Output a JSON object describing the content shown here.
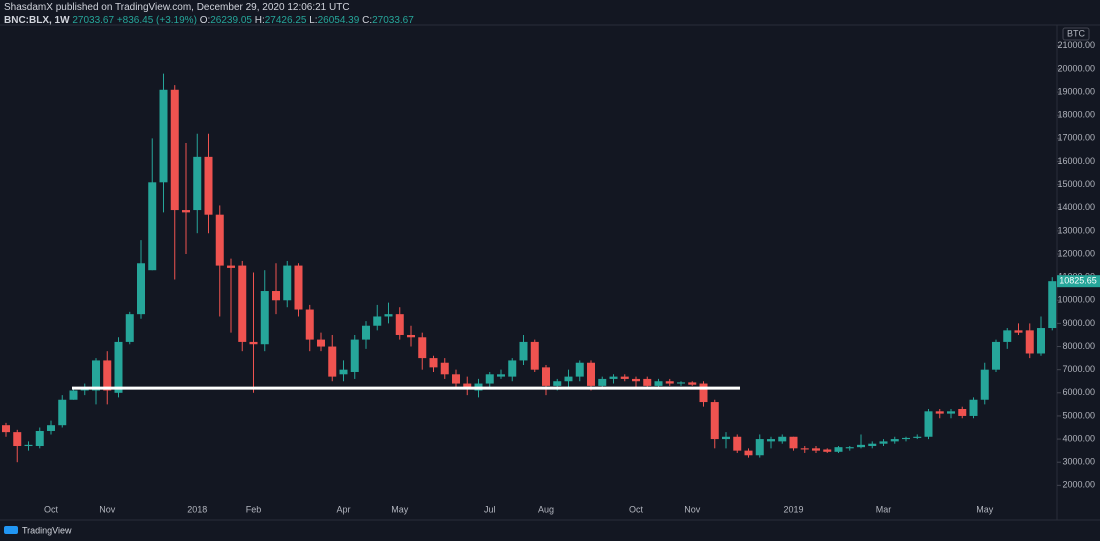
{
  "header": {
    "published": "ShasdamX published on TradingView.com, December 29, 2020 12:06:21 UTC",
    "symbol": "BNC:BLX, 1W",
    "price": "27033.67",
    "change": "+836.45 (+3.19%)",
    "o_label": "O:",
    "o": "26239.05",
    "h_label": "H:",
    "h": "27426.25",
    "l_label": "L:",
    "l": "26054.39",
    "c_label": "C:",
    "c": "27033.67"
  },
  "footer": {
    "brand": "TradingView"
  },
  "chart_data": {
    "type": "candlestick",
    "currency": "BTC",
    "categories": [
      null,
      null,
      null,
      null,
      "Oct",
      null,
      null,
      null,
      null,
      "Nov",
      null,
      null,
      null,
      null,
      null,
      null,
      null,
      "2018",
      null,
      null,
      null,
      null,
      "Feb",
      null,
      null,
      null,
      null,
      null,
      null,
      null,
      "Apr",
      null,
      null,
      null,
      null,
      "May",
      null,
      null,
      null,
      null,
      null,
      null,
      null,
      "Jul",
      null,
      null,
      null,
      null,
      "Aug",
      null,
      null,
      null,
      null,
      null,
      null,
      null,
      "Oct",
      null,
      null,
      null,
      null,
      "Nov",
      null,
      null,
      null,
      null,
      null,
      null,
      null,
      null,
      "2019",
      null,
      null,
      null,
      null,
      null,
      null,
      null,
      "Mar",
      null,
      null,
      null,
      null,
      null,
      null,
      null,
      null,
      "May",
      null,
      null,
      null,
      null,
      null,
      null
    ],
    "open": [
      4600,
      4300,
      3700,
      3700,
      4350,
      4600,
      5700,
      6100,
      6100,
      7400,
      6000,
      8200,
      9400,
      11300,
      15100,
      19100,
      13900,
      13900,
      16200,
      13700,
      11500,
      11500,
      8200,
      8100,
      10400,
      10000,
      11500,
      9600,
      8300,
      8000,
      6800,
      6900,
      8300,
      8900,
      9300,
      9400,
      8500,
      8400,
      7500,
      7300,
      6800,
      6400,
      6100,
      6400,
      6700,
      6700,
      7400,
      8200,
      7100,
      6300,
      6500,
      6700,
      7300,
      6300,
      6600,
      6700,
      6600,
      6600,
      6300,
      6500,
      6400,
      6450,
      6400,
      5600,
      4000,
      4100,
      3500,
      3300,
      3900,
      3900,
      4100,
      3600,
      3600,
      3550,
      3450,
      3600,
      3650,
      3700,
      3800,
      3900,
      4000,
      4050,
      4100,
      5200,
      5100,
      5300,
      5000,
      5700,
      7000,
      8200,
      8700,
      8700,
      7700,
      8800
    ],
    "high": [
      4700,
      4400,
      3900,
      4500,
      4800,
      5900,
      6200,
      6400,
      7500,
      7800,
      8400,
      9500,
      12600,
      17000,
      19800,
      19300,
      16800,
      17200,
      17200,
      14100,
      11800,
      11700,
      11200,
      11300,
      11600,
      11700,
      11600,
      9800,
      8600,
      8500,
      7400,
      8500,
      9100,
      9800,
      9900,
      9700,
      8900,
      8600,
      7600,
      7500,
      7000,
      6700,
      6600,
      6900,
      7000,
      7500,
      8500,
      8300,
      7200,
      6600,
      7000,
      7400,
      7400,
      6700,
      6800,
      6800,
      6700,
      6700,
      6600,
      6600,
      6500,
      6500,
      6500,
      5700,
      4300,
      4200,
      3600,
      4200,
      4100,
      4200,
      4100,
      3700,
      3700,
      3600,
      3700,
      3700,
      4200,
      3900,
      4000,
      4100,
      4100,
      4200,
      5300,
      5300,
      5300,
      5400,
      5800,
      7300,
      8300,
      8800,
      9000,
      9000,
      9300,
      11000
    ],
    "low": [
      4100,
      3000,
      3500,
      3600,
      4200,
      4500,
      5700,
      5900,
      5500,
      5500,
      5800,
      8100,
      9200,
      11300,
      13800,
      10900,
      12000,
      12900,
      12900,
      9300,
      8600,
      7800,
      6000,
      7800,
      9400,
      9700,
      9300,
      7800,
      7800,
      6500,
      6500,
      6600,
      7900,
      8700,
      9000,
      8300,
      8000,
      7000,
      6900,
      6600,
      6200,
      5900,
      5800,
      6200,
      6600,
      6500,
      7200,
      6900,
      5900,
      6100,
      6200,
      6500,
      6100,
      6200,
      6400,
      6500,
      6200,
      6200,
      6200,
      6300,
      6300,
      6300,
      5400,
      3600,
      3600,
      3400,
      3200,
      3200,
      3600,
      3800,
      3500,
      3400,
      3400,
      3400,
      3400,
      3500,
      3600,
      3600,
      3700,
      3800,
      3900,
      4000,
      4000,
      4900,
      4900,
      4900,
      4900,
      5500,
      6900,
      7900,
      8500,
      7500,
      7600,
      8700
    ],
    "close": [
      4300,
      3700,
      3750,
      4350,
      4600,
      5700,
      6100,
      6150,
      7400,
      6100,
      8200,
      9400,
      11600,
      15100,
      19100,
      13900,
      13800,
      16200,
      13700,
      11500,
      11400,
      8200,
      8100,
      10400,
      10000,
      11500,
      9600,
      8300,
      8000,
      6700,
      7000,
      8300,
      8900,
      9300,
      9400,
      8500,
      8400,
      7500,
      7100,
      6800,
      6400,
      6200,
      6400,
      6800,
      6800,
      7400,
      8200,
      7000,
      6300,
      6500,
      6700,
      7300,
      6300,
      6600,
      6700,
      6600,
      6500,
      6300,
      6500,
      6400,
      6450,
      6350,
      5600,
      4000,
      4100,
      3500,
      3300,
      4000,
      4000,
      4100,
      3600,
      3550,
      3500,
      3450,
      3650,
      3650,
      3750,
      3800,
      3900,
      4000,
      4050,
      4100,
      5200,
      5100,
      5200,
      5000,
      5700,
      7000,
      8200,
      8700,
      8600,
      7700,
      8800,
      10825.65
    ],
    "up_color": "#26a69a",
    "down_color": "#ef5350",
    "support_line": 6200,
    "ylim": [
      1150,
      21900
    ],
    "yticks": [
      {
        "value": 2000,
        "label": "2000.00"
      },
      {
        "value": 3000,
        "label": "3000.00"
      },
      {
        "value": 4000,
        "label": "4000.00"
      },
      {
        "value": 5000,
        "label": "5000.00"
      },
      {
        "value": 6000,
        "label": "6000.00"
      },
      {
        "value": 7000,
        "label": "7000.00"
      },
      {
        "value": 8000,
        "label": "8000.00"
      },
      {
        "value": 9000,
        "label": "9000.00"
      },
      {
        "value": 10000,
        "label": "10000.00"
      },
      {
        "value": 11000,
        "label": "11000.00"
      },
      {
        "value": 12000,
        "label": "12000.00"
      },
      {
        "value": 13000,
        "label": "13000.00"
      },
      {
        "value": 14000,
        "label": "14000.00"
      },
      {
        "value": 15000,
        "label": "15000.00"
      },
      {
        "value": 16000,
        "label": "16000.00"
      },
      {
        "value": 17000,
        "label": "17000.00"
      },
      {
        "value": 18000,
        "label": "18000.00"
      },
      {
        "value": 19000,
        "label": "19000.00"
      },
      {
        "value": 20000,
        "label": "20000.00"
      },
      {
        "value": 21000,
        "label": "21000.00"
      }
    ]
  }
}
